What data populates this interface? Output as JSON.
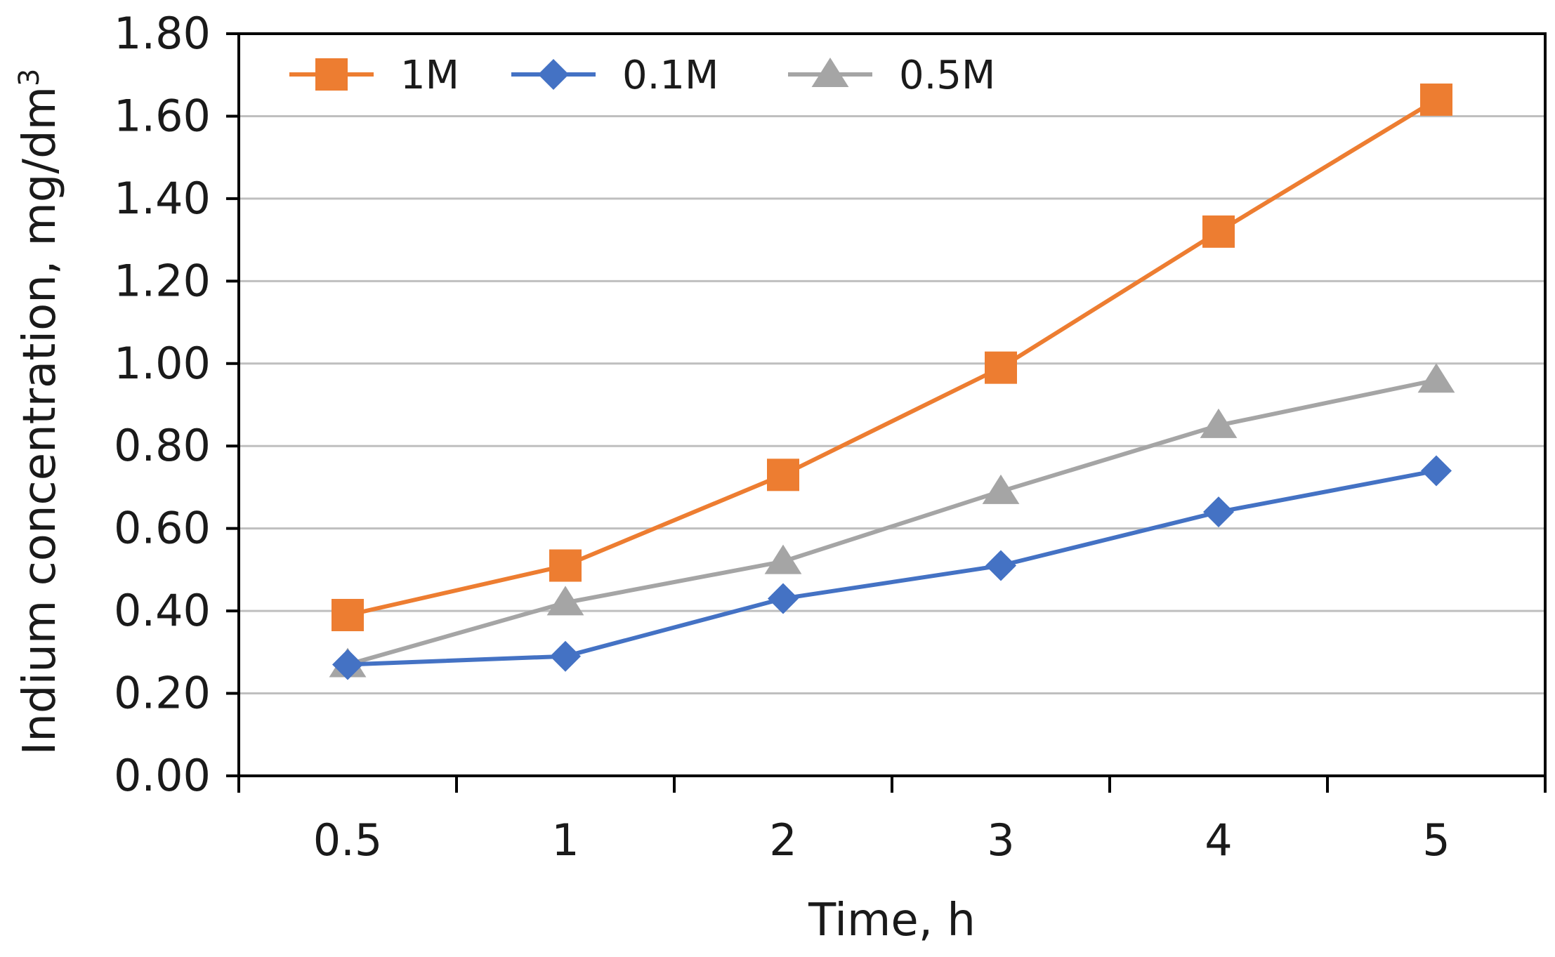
{
  "chart_data": {
    "type": "line",
    "title": "",
    "xlabel": "Time, h",
    "ylabel": "Indium concentration, mg/dm",
    "ylabel_superscript": "3",
    "categories": [
      "0.5",
      "1",
      "2",
      "3",
      "4",
      "5"
    ],
    "ylim": [
      0,
      1.8
    ],
    "yticks": [
      "0.00",
      "0.20",
      "0.40",
      "0.60",
      "0.80",
      "1.00",
      "1.20",
      "1.40",
      "1.60",
      "1.80"
    ],
    "grid": "horizontal",
    "legend_position": "top-left",
    "series": [
      {
        "name": "1M",
        "color": "#ED7D31",
        "marker": "square",
        "values": [
          0.39,
          0.51,
          0.73,
          0.99,
          1.32,
          1.64
        ]
      },
      {
        "name": "0.1M",
        "color": "#4472C4",
        "marker": "diamond",
        "values": [
          0.27,
          0.29,
          0.43,
          0.51,
          0.64,
          0.74
        ]
      },
      {
        "name": "0.5M",
        "color": "#A5A5A5",
        "marker": "triangle",
        "values": [
          0.27,
          0.42,
          0.52,
          0.69,
          0.85,
          0.96
        ]
      }
    ]
  }
}
